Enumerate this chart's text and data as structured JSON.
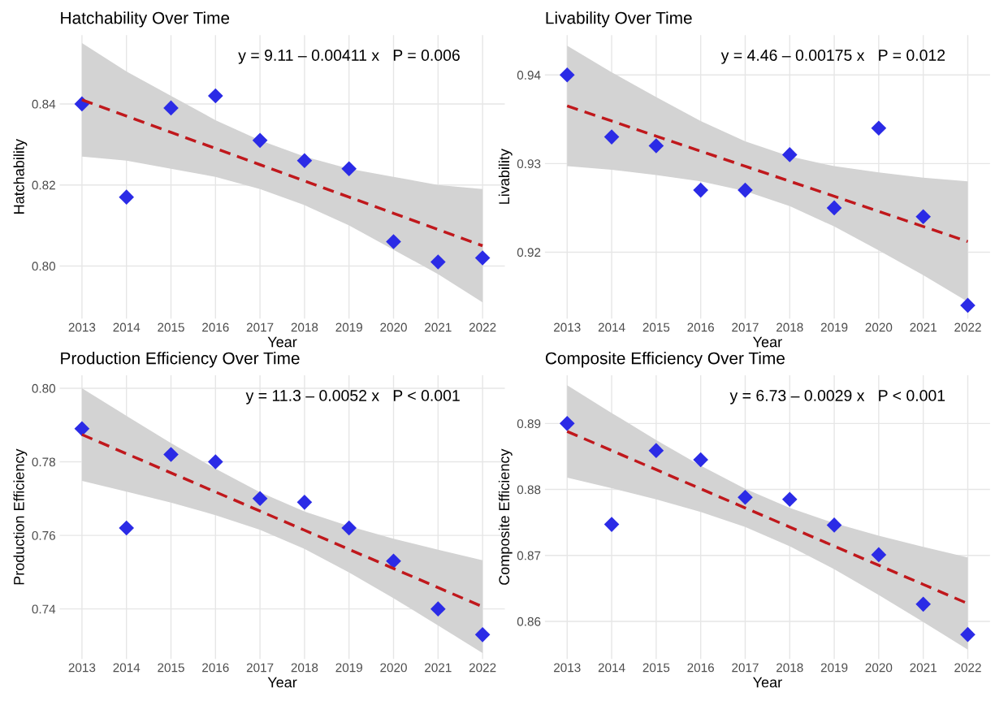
{
  "chart_data": [
    {
      "type": "scatter",
      "title": "Hatchability Over Time",
      "xlabel": "Year",
      "ylabel": "Hatchability",
      "annotations": [
        "y = 9.11 – 0.00411 x   P = 0.006"
      ],
      "x": [
        2013,
        2014,
        2015,
        2016,
        2017,
        2018,
        2019,
        2020,
        2021,
        2022
      ],
      "xlim": [
        2012.5,
        2022.5
      ],
      "xticks": [
        2013,
        2014,
        2015,
        2016,
        2017,
        2018,
        2019,
        2020,
        2021,
        2022
      ],
      "ylim": [
        0.787,
        0.857
      ],
      "yticks": [
        {
          "value": 0.8,
          "label": "0.80"
        },
        0.82,
        0.84
      ],
      "grid": true,
      "legend": false,
      "series": [
        {
          "color": "#2b2be6",
          "marker": "diamond",
          "values": [
            0.84,
            0.817,
            0.839,
            0.842,
            0.831,
            0.826,
            0.824,
            0.806,
            0.801,
            0.802
          ]
        },
        {
          "type": "line",
          "color": "#c0181c",
          "line_style": "dashed",
          "marker": "none",
          "values": [
            0.841,
            0.837,
            0.833,
            0.829,
            0.825,
            0.821,
            0.817,
            0.813,
            0.809,
            0.805
          ],
          "upper": [
            0.855,
            0.848,
            0.842,
            0.836,
            0.831,
            0.827,
            0.824,
            0.822,
            0.82,
            0.819
          ],
          "lower": [
            0.827,
            0.826,
            0.824,
            0.822,
            0.819,
            0.815,
            0.81,
            0.804,
            0.798,
            0.791
          ]
        }
      ]
    },
    {
      "type": "scatter",
      "title": "Livability Over Time",
      "xlabel": "Year",
      "ylabel": "Livability",
      "annotations": [
        "y = 4.46 – 0.00175 x   P = 0.012"
      ],
      "x": [
        2013,
        2014,
        2015,
        2016,
        2017,
        2018,
        2019,
        2020,
        2021,
        2022
      ],
      "xlim": [
        2012.5,
        2022.5
      ],
      "xticks": [
        2013,
        2014,
        2015,
        2016,
        2017,
        2018,
        2019,
        2020,
        2021,
        2022
      ],
      "ylim": [
        0.9125,
        0.9445
      ],
      "yticks": [
        0.92,
        0.93,
        0.94
      ],
      "grid": true,
      "legend": false,
      "series": [
        {
          "color": "#2b2be6",
          "marker": "diamond",
          "values": [
            0.94,
            0.933,
            0.932,
            0.927,
            0.927,
            0.931,
            0.925,
            0.934,
            0.924,
            0.914
          ]
        },
        {
          "type": "line",
          "color": "#c0181c",
          "line_style": "dashed",
          "marker": "none",
          "values": [
            0.9365,
            0.9348,
            0.9331,
            0.9314,
            0.9297,
            0.928,
            0.9263,
            0.9246,
            0.9229,
            0.9212
          ],
          "upper": [
            0.9433,
            0.9403,
            0.9375,
            0.9348,
            0.9325,
            0.9308,
            0.9297,
            0.929,
            0.9284,
            0.928
          ],
          "lower": [
            0.9297,
            0.9293,
            0.9287,
            0.928,
            0.9269,
            0.9252,
            0.9229,
            0.9202,
            0.9174,
            0.9144
          ]
        }
      ]
    },
    {
      "type": "scatter",
      "title": "Production Efficiency Over Time",
      "xlabel": "Year",
      "ylabel": "Production Efficiency",
      "annotations": [
        "y = 11.3 – 0.0052 x   P < 0.001"
      ],
      "x": [
        2013,
        2014,
        2015,
        2016,
        2017,
        2018,
        2019,
        2020,
        2021,
        2022
      ],
      "xlim": [
        2012.5,
        2022.5
      ],
      "xticks": [
        2013,
        2014,
        2015,
        2016,
        2017,
        2018,
        2019,
        2020,
        2021,
        2022
      ],
      "ylim": [
        0.7264,
        0.8035
      ],
      "yticks": [
        0.74,
        0.76,
        0.78,
        {
          "value": 0.8,
          "label": "0.80"
        }
      ],
      "grid": true,
      "legend": false,
      "series": [
        {
          "color": "#2b2be6",
          "marker": "diamond",
          "values": [
            0.789,
            0.762,
            0.782,
            0.78,
            0.77,
            0.769,
            0.762,
            0.753,
            0.74,
            0.733
          ]
        },
        {
          "type": "line",
          "color": "#c0181c",
          "line_style": "dashed",
          "marker": "none",
          "values": [
            0.7874,
            0.7822,
            0.777,
            0.7718,
            0.7666,
            0.7614,
            0.7562,
            0.751,
            0.7458,
            0.7406
          ],
          "upper": [
            0.8,
            0.7925,
            0.7851,
            0.7781,
            0.7717,
            0.7665,
            0.7625,
            0.7591,
            0.7561,
            0.7532
          ],
          "lower": [
            0.7748,
            0.7719,
            0.7689,
            0.7655,
            0.7615,
            0.7563,
            0.7499,
            0.7429,
            0.7355,
            0.728
          ]
        }
      ]
    },
    {
      "type": "scatter",
      "title": "Composite Efficiency Over Time",
      "xlabel": "Year",
      "ylabel": "Composite Efficiency",
      "annotations": [
        "y = 6.73 – 0.0029 x   P < 0.001"
      ],
      "x": [
        2013,
        2014,
        2015,
        2016,
        2017,
        2018,
        2019,
        2020,
        2021,
        2022
      ],
      "xlim": [
        2012.5,
        2022.5
      ],
      "xticks": [
        2013,
        2014,
        2015,
        2016,
        2017,
        2018,
        2019,
        2020,
        2021,
        2022
      ],
      "ylim": [
        0.8543,
        0.8973
      ],
      "yticks": [
        0.86,
        0.87,
        0.88,
        0.89
      ],
      "grid": true,
      "legend": false,
      "series": [
        {
          "color": "#2b2be6",
          "marker": "diamond",
          "values": [
            0.89,
            0.8747,
            0.8859,
            0.8845,
            0.8788,
            0.8785,
            0.8746,
            0.8701,
            0.8626,
            0.858
          ]
        },
        {
          "type": "line",
          "color": "#c0181c",
          "line_style": "dashed",
          "marker": "none",
          "values": [
            0.8888,
            0.8859,
            0.883,
            0.8801,
            0.8772,
            0.8743,
            0.8714,
            0.8685,
            0.8656,
            0.8627
          ],
          "upper": [
            0.8958,
            0.8916,
            0.8875,
            0.8836,
            0.8801,
            0.8772,
            0.8749,
            0.873,
            0.8713,
            0.8697
          ],
          "lower": [
            0.8818,
            0.8802,
            0.8785,
            0.8766,
            0.8743,
            0.8714,
            0.8679,
            0.864,
            0.8599,
            0.8557
          ]
        }
      ]
    }
  ]
}
